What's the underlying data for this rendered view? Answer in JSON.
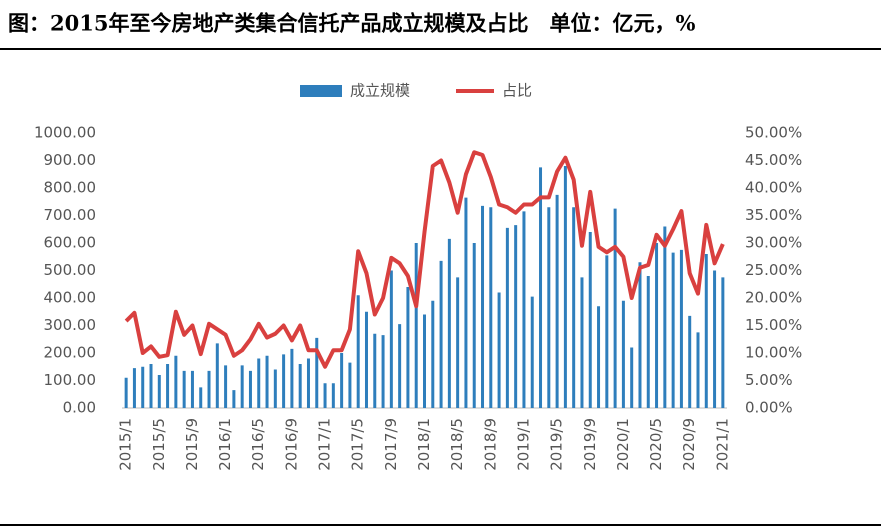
{
  "chart_data": {
    "type": "bar_line",
    "title": "图：2015年至今房地产类集合信托产品成立规模及占比　单位：亿元，%",
    "categories": [
      "2015/1",
      null,
      null,
      null,
      "2015/5",
      null,
      null,
      null,
      "2015/9",
      null,
      null,
      null,
      "2016/1",
      null,
      null,
      null,
      "2016/5",
      null,
      null,
      null,
      "2016/9",
      null,
      null,
      null,
      "2017/1",
      null,
      null,
      null,
      "2017/5",
      null,
      null,
      null,
      "2017/9",
      null,
      null,
      null,
      "2018/1",
      null,
      null,
      null,
      "2018/5",
      null,
      null,
      null,
      "2018/9",
      null,
      null,
      null,
      "2019/1",
      null,
      null,
      null,
      "2019/5",
      null,
      null,
      null,
      "2019/9",
      null,
      null,
      null,
      "2020/1",
      null,
      null,
      null,
      "2020/5",
      null,
      null,
      null,
      "2020/9",
      null,
      null,
      null,
      "2021/1"
    ],
    "series": [
      {
        "name": "成立规模",
        "type": "bar",
        "color": "#2e7ebc",
        "values": [
          110,
          145,
          150,
          160,
          120,
          160,
          190,
          135,
          135,
          75,
          135,
          235,
          155,
          65,
          155,
          135,
          180,
          190,
          140,
          195,
          215,
          160,
          180,
          255,
          90,
          90,
          200,
          165,
          410,
          350,
          270,
          265,
          500,
          305,
          440,
          600,
          340,
          390,
          535,
          615,
          475,
          765,
          600,
          735,
          730,
          420,
          655,
          665,
          715,
          405,
          875,
          730,
          775,
          880,
          730,
          475,
          640,
          370,
          555,
          725,
          390,
          220,
          530,
          480,
          600,
          660,
          565,
          575,
          335,
          275,
          560,
          500,
          475
        ]
      },
      {
        "name": "占比",
        "type": "line",
        "axis": "y2",
        "color": "#d9403f",
        "values": [
          15.8,
          17.3,
          10,
          11.2,
          9.3,
          9.6,
          17.5,
          13.3,
          15,
          9.8,
          15.3,
          14.3,
          13.3,
          9.5,
          10.5,
          12.5,
          15.3,
          12.8,
          13.5,
          15,
          12.3,
          15,
          10.5,
          10.5,
          7.5,
          10.5,
          10.5,
          14.3,
          28.5,
          24.5,
          17,
          20,
          27.3,
          26.3,
          24,
          18.5,
          32,
          44,
          45,
          41,
          35.5,
          42.5,
          46.5,
          46,
          42,
          37,
          36.5,
          35.5,
          37,
          37,
          38.3,
          38.3,
          43,
          45.5,
          41.5,
          29.5,
          39.3,
          29.3,
          28.3,
          29.3,
          27.5,
          20,
          25.5,
          26,
          31.5,
          29.5,
          32.5,
          35.8,
          24.5,
          20.8,
          33.3,
          26.3,
          29.8
        ]
      }
    ],
    "ylim": [
      0,
      1000
    ],
    "yticks": [
      {
        "value": 0,
        "label": "0.00"
      },
      {
        "value": 100,
        "label": "100.00"
      },
      {
        "value": 200,
        "label": "200.00"
      },
      {
        "value": 300,
        "label": "300.00"
      },
      {
        "value": 400,
        "label": "400.00"
      },
      {
        "value": 500,
        "label": "500.00"
      },
      {
        "value": 600,
        "label": "600.00"
      },
      {
        "value": 700,
        "label": "700.00"
      },
      {
        "value": 800,
        "label": "800.00"
      },
      {
        "value": 900,
        "label": "900.00"
      },
      {
        "value": 1000,
        "label": "1000.00"
      }
    ],
    "y2lim": [
      0,
      50
    ],
    "y2ticks": [
      {
        "value": 0,
        "label": "0.00%"
      },
      {
        "value": 5,
        "label": "5.00%"
      },
      {
        "value": 10,
        "label": "10.00%"
      },
      {
        "value": 15,
        "label": "15.00%"
      },
      {
        "value": 20,
        "label": "20.00%"
      },
      {
        "value": 25,
        "label": "25.00%"
      },
      {
        "value": 30,
        "label": "30.00%"
      },
      {
        "value": 35,
        "label": "35.00%"
      },
      {
        "value": 40,
        "label": "40.00%"
      },
      {
        "value": 45,
        "label": "45.00%"
      },
      {
        "value": 50,
        "label": "50.00%"
      }
    ],
    "legend": "top"
  }
}
